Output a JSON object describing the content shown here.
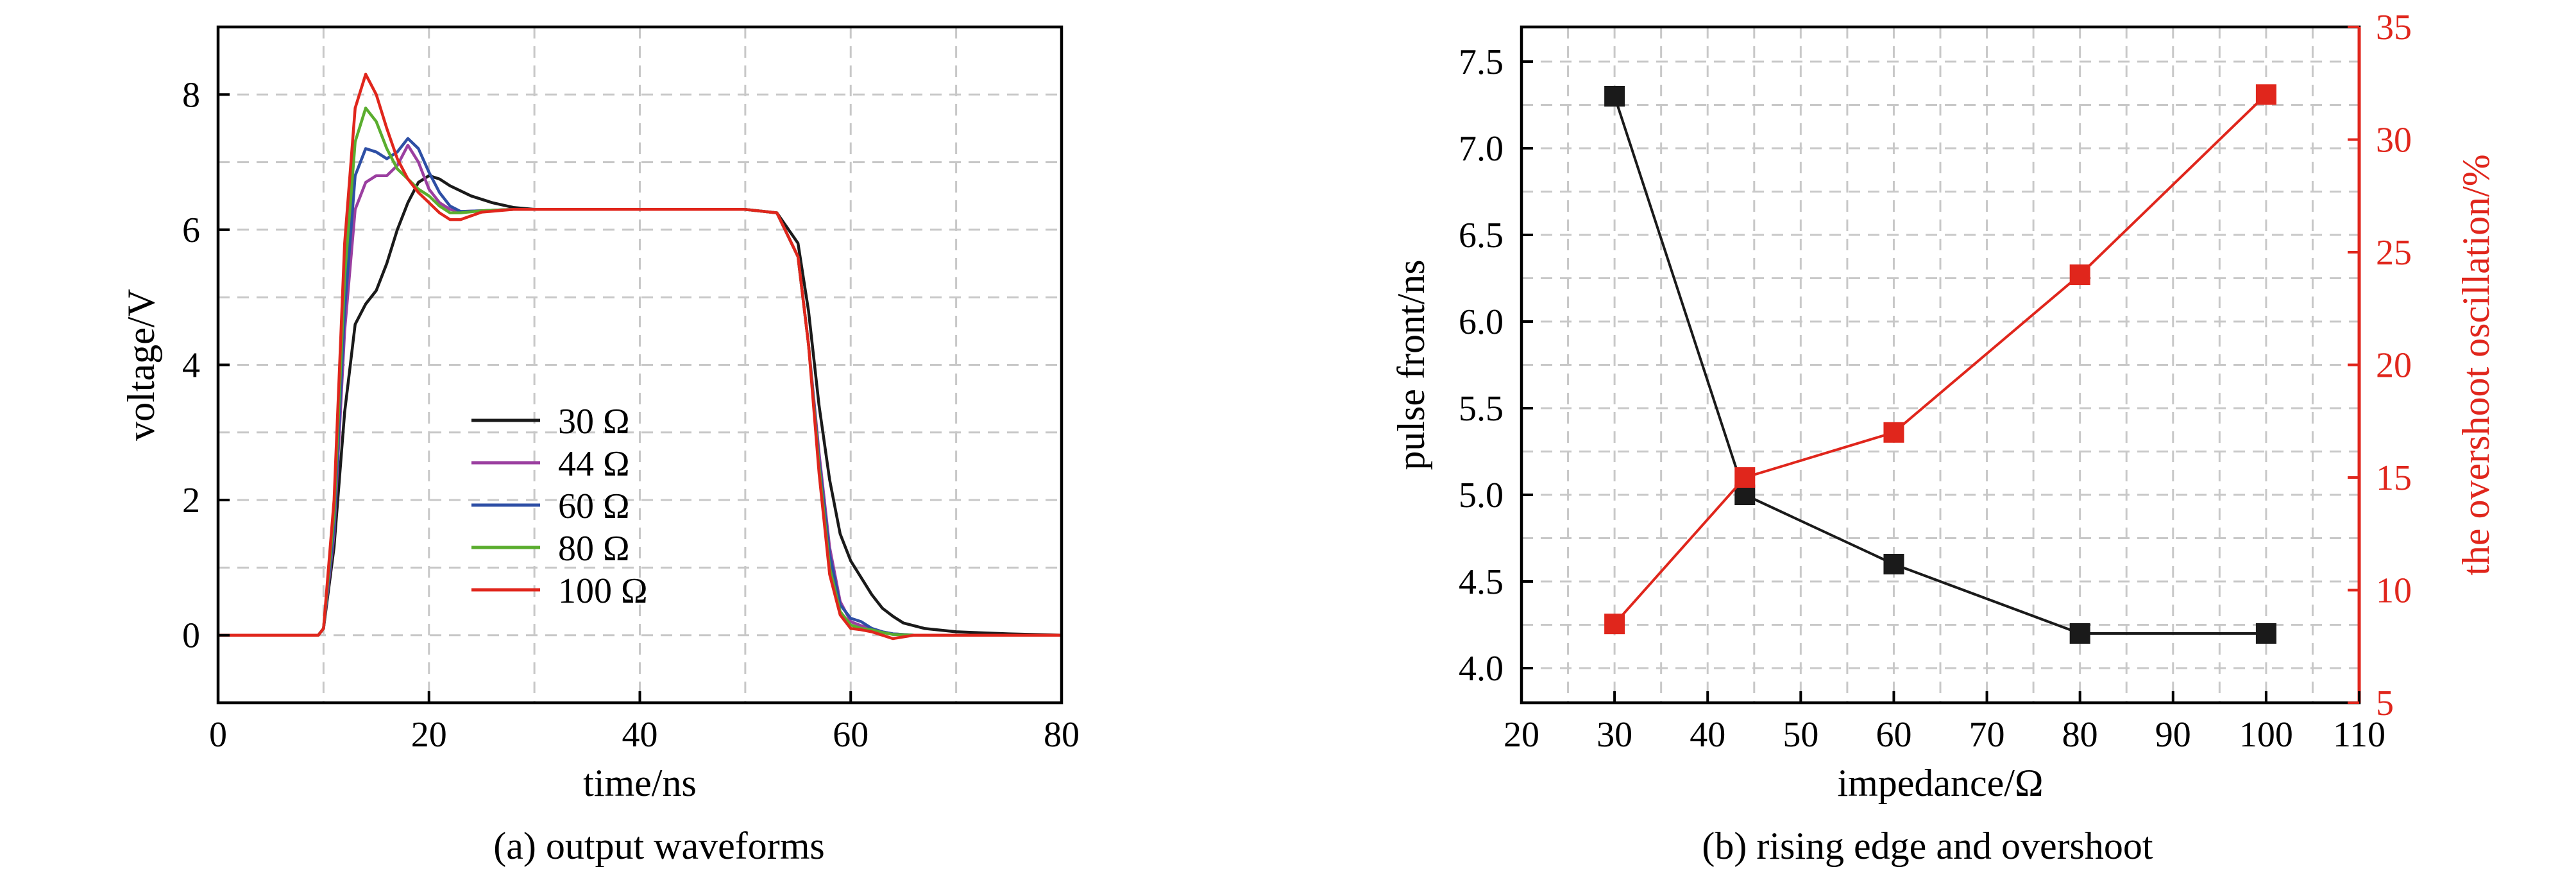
{
  "chart_data": [
    {
      "type": "line",
      "caption": "(a) output waveforms",
      "xlabel": "time/ns",
      "ylabel": "voltage/V",
      "xlim": [
        0,
        80
      ],
      "ylim": [
        -1,
        9
      ],
      "xticks": [
        0,
        20,
        40,
        60,
        80
      ],
      "yticks": [
        0,
        2,
        4,
        6,
        8
      ],
      "grid": true,
      "legend_position": "center-left",
      "series": [
        {
          "name": "30 Ω",
          "color": "#1a1a1a",
          "x": [
            0,
            9.5,
            10,
            11,
            12,
            13,
            14,
            15,
            16,
            17,
            18,
            19,
            20,
            21,
            22,
            24,
            26,
            28,
            30,
            40,
            50,
            53,
            55,
            56,
            57,
            58,
            59,
            60,
            61,
            62,
            63,
            64,
            65,
            67,
            70,
            75,
            80
          ],
          "y": [
            0,
            0,
            0.1,
            1.3,
            3.3,
            4.6,
            4.9,
            5.1,
            5.5,
            6.0,
            6.4,
            6.7,
            6.8,
            6.75,
            6.65,
            6.5,
            6.4,
            6.33,
            6.3,
            6.3,
            6.3,
            6.25,
            5.8,
            4.8,
            3.4,
            2.3,
            1.5,
            1.1,
            0.85,
            0.6,
            0.4,
            0.28,
            0.18,
            0.1,
            0.05,
            0.02,
            0
          ]
        },
        {
          "name": "44 Ω",
          "color": "#9b3fa0",
          "x": [
            0,
            9.5,
            10,
            11,
            12,
            13,
            14,
            15,
            16,
            17,
            18,
            19,
            20,
            21,
            22,
            23,
            25,
            28,
            30,
            40,
            50,
            53,
            55,
            56,
            57,
            58,
            59,
            60,
            61,
            62,
            63,
            64,
            66,
            70,
            80
          ],
          "y": [
            0,
            0,
            0.1,
            1.5,
            4.5,
            6.3,
            6.7,
            6.8,
            6.8,
            6.95,
            7.25,
            7.0,
            6.6,
            6.4,
            6.3,
            6.27,
            6.28,
            6.3,
            6.3,
            6.3,
            6.3,
            6.25,
            5.6,
            4.3,
            2.7,
            1.3,
            0.5,
            0.2,
            0.14,
            0.1,
            0.05,
            0.02,
            0,
            0,
            0
          ]
        },
        {
          "name": "60 Ω",
          "color": "#2e4fa5",
          "x": [
            0,
            9.5,
            10,
            11,
            12,
            13,
            14,
            15,
            16,
            17,
            18,
            19,
            20,
            21,
            22,
            23,
            25,
            28,
            30,
            40,
            50,
            53,
            55,
            56,
            57,
            58,
            59,
            60,
            61,
            62,
            63,
            64,
            66,
            70,
            80
          ],
          "y": [
            0,
            0,
            0.1,
            1.6,
            4.8,
            6.8,
            7.2,
            7.15,
            7.05,
            7.15,
            7.35,
            7.2,
            6.85,
            6.55,
            6.35,
            6.27,
            6.28,
            6.3,
            6.3,
            6.3,
            6.3,
            6.25,
            5.6,
            4.3,
            2.6,
            1.2,
            0.45,
            0.25,
            0.2,
            0.1,
            0.05,
            0.02,
            0,
            0,
            0
          ]
        },
        {
          "name": "80 Ω",
          "color": "#5aad2e",
          "x": [
            0,
            9.5,
            10,
            11,
            12,
            13,
            14,
            15,
            16,
            17,
            18,
            19,
            20,
            21,
            22,
            23,
            25,
            28,
            30,
            40,
            50,
            53,
            55,
            56,
            57,
            58,
            59,
            60,
            61,
            62,
            63,
            64,
            66,
            70,
            80
          ],
          "y": [
            0,
            0,
            0.1,
            1.8,
            5.3,
            7.3,
            7.8,
            7.6,
            7.2,
            6.9,
            6.75,
            6.6,
            6.5,
            6.35,
            6.25,
            6.25,
            6.28,
            6.3,
            6.3,
            6.3,
            6.3,
            6.25,
            5.6,
            4.3,
            2.5,
            1.0,
            0.35,
            0.15,
            0.1,
            0.08,
            0.04,
            0.01,
            0,
            0,
            0
          ]
        },
        {
          "name": "100 Ω",
          "color": "#e0261c",
          "x": [
            0,
            9.5,
            10,
            11,
            12,
            13,
            14,
            15,
            16,
            17,
            18,
            19,
            20,
            21,
            22,
            23,
            25,
            28,
            30,
            40,
            50,
            53,
            55,
            56,
            57,
            58,
            59,
            60,
            61,
            62,
            63,
            64,
            66,
            70,
            80
          ],
          "y": [
            0,
            0,
            0.1,
            2.0,
            5.8,
            7.8,
            8.3,
            8.0,
            7.5,
            7.05,
            6.75,
            6.55,
            6.4,
            6.25,
            6.15,
            6.15,
            6.26,
            6.3,
            6.3,
            6.3,
            6.3,
            6.25,
            5.6,
            4.3,
            2.4,
            0.9,
            0.3,
            0.1,
            0.08,
            0.05,
            0,
            -0.05,
            0,
            0,
            0
          ]
        }
      ]
    },
    {
      "type": "line",
      "caption": "(b) rising edge and overshoot",
      "xlabel": "impedance/Ω",
      "ylabel": "pulse front/ns",
      "y2label": "the overshoot oscillation/%",
      "xlim": [
        20,
        110
      ],
      "ylim": [
        3.8,
        7.7
      ],
      "y2lim": [
        5,
        35
      ],
      "xticks": [
        20,
        30,
        40,
        50,
        60,
        70,
        80,
        90,
        100,
        110
      ],
      "yticks": [
        4.0,
        4.5,
        5.0,
        5.5,
        6.0,
        6.5,
        7.0,
        7.5
      ],
      "y2ticks": [
        5,
        10,
        15,
        20,
        25,
        30,
        35
      ],
      "grid": true,
      "marker": "square",
      "series": [
        {
          "axis": "left",
          "color": "#1a1a1a",
          "x": [
            30,
            44,
            60,
            80,
            100
          ],
          "y": [
            7.3,
            5.0,
            4.6,
            4.2,
            4.2
          ]
        },
        {
          "axis": "right",
          "color": "#e0261c",
          "x": [
            30,
            44,
            60,
            80,
            100
          ],
          "y": [
            8.5,
            15,
            17,
            24,
            32
          ]
        }
      ]
    }
  ]
}
